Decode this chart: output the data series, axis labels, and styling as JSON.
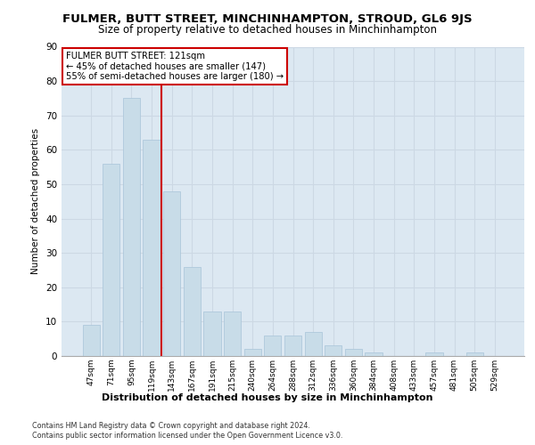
{
  "title": "FULMER, BUTT STREET, MINCHINHAMPTON, STROUD, GL6 9JS",
  "subtitle": "Size of property relative to detached houses in Minchinhampton",
  "xlabel": "Distribution of detached houses by size in Minchinhampton",
  "ylabel": "Number of detached properties",
  "categories": [
    "47sqm",
    "71sqm",
    "95sqm",
    "119sqm",
    "143sqm",
    "167sqm",
    "191sqm",
    "215sqm",
    "240sqm",
    "264sqm",
    "288sqm",
    "312sqm",
    "336sqm",
    "360sqm",
    "384sqm",
    "408sqm",
    "433sqm",
    "457sqm",
    "481sqm",
    "505sqm",
    "529sqm"
  ],
  "values": [
    9,
    56,
    75,
    63,
    48,
    26,
    13,
    13,
    2,
    6,
    6,
    7,
    3,
    2,
    1,
    0,
    0,
    1,
    0,
    1,
    0
  ],
  "bar_color": "#c8dce8",
  "bar_edge_color": "#a8c4d8",
  "vline_index": 3.5,
  "vline_color": "#cc0000",
  "annotation_line1": "FULMER BUTT STREET: 121sqm",
  "annotation_line2": "← 45% of detached houses are smaller (147)",
  "annotation_line3": "55% of semi-detached houses are larger (180) →",
  "annotation_box_facecolor": "#ffffff",
  "annotation_box_edgecolor": "#cc0000",
  "grid_color": "#ccd8e4",
  "plot_bg_color": "#dce8f2",
  "ylim": [
    0,
    90
  ],
  "yticks": [
    0,
    10,
    20,
    30,
    40,
    50,
    60,
    70,
    80,
    90
  ],
  "footer1": "Contains HM Land Registry data © Crown copyright and database right 2024.",
  "footer2": "Contains public sector information licensed under the Open Government Licence v3.0."
}
